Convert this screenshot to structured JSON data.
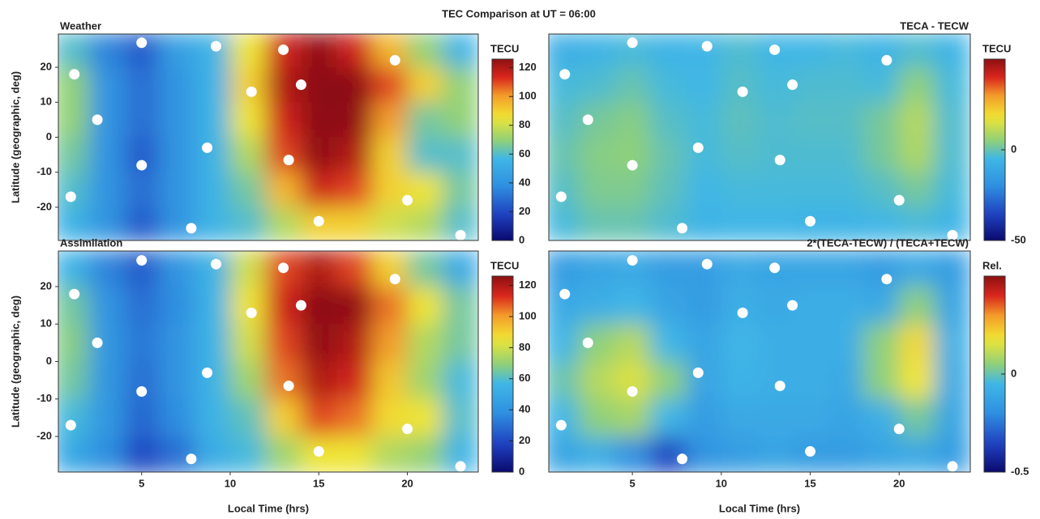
{
  "title": "TEC Comparison at UT = 06:00",
  "chart_data": [
    {
      "type": "heatmap",
      "title": "Weather",
      "colormap": "jet",
      "ylabel": "Latitude (geographic, deg)",
      "xlim": [
        0.3,
        24
      ],
      "ylim": [
        -29.5,
        29.5
      ],
      "yticks": [
        20,
        10,
        0,
        -10,
        -20
      ],
      "colorbar": {
        "label": "TECU",
        "lim": [
          0,
          126
        ],
        "ticks": [
          0,
          20,
          40,
          60,
          80,
          100,
          120
        ]
      },
      "grid_x": [
        1,
        3,
        5,
        7,
        9,
        11,
        13,
        15,
        17,
        19,
        21,
        23
      ],
      "grid_y": [
        25,
        15,
        5,
        -5,
        -15,
        -25
      ],
      "z": [
        [
          60,
          35,
          25,
          45,
          55,
          85,
          115,
          125,
          115,
          95,
          70,
          55
        ],
        [
          70,
          40,
          30,
          40,
          55,
          90,
          120,
          135,
          130,
          110,
          90,
          70
        ],
        [
          70,
          40,
          30,
          40,
          55,
          85,
          115,
          130,
          125,
          100,
          65,
          70
        ],
        [
          65,
          40,
          25,
          40,
          55,
          75,
          110,
          125,
          120,
          90,
          60,
          60
        ],
        [
          60,
          40,
          30,
          40,
          55,
          65,
          95,
          115,
          110,
          90,
          85,
          65
        ],
        [
          55,
          40,
          25,
          40,
          55,
          60,
          75,
          90,
          90,
          80,
          75,
          60
        ]
      ],
      "stations": {
        "x": [
          1.2,
          2.5,
          5,
          5,
          1,
          7.8,
          9.2,
          8.7,
          11.2,
          13,
          14,
          13.3,
          15,
          19.3,
          20,
          23
        ],
        "y": [
          18,
          5,
          27,
          -8,
          -17,
          -26,
          26,
          -3,
          13,
          25,
          15,
          -6.5,
          -24,
          22,
          -18,
          -28
        ]
      }
    },
    {
      "type": "heatmap",
      "title": "TECA - TECW",
      "colormap": "jet",
      "xlim": [
        0.3,
        24
      ],
      "ylim": [
        -29.5,
        29.5
      ],
      "colorbar": {
        "label": "TECU",
        "lim": [
          -50,
          50
        ],
        "ticks": [
          0,
          -50
        ]
      },
      "grid_x": [
        1,
        3,
        5,
        7,
        9,
        11,
        13,
        15,
        17,
        19,
        21,
        23
      ],
      "grid_y": [
        25,
        15,
        5,
        -5,
        -15,
        -25
      ],
      "z": [
        [
          -8,
          -6,
          -4,
          -6,
          -5,
          -3,
          -5,
          -5,
          -4,
          -6,
          -3,
          -6
        ],
        [
          -4,
          -3,
          0,
          -4,
          -5,
          -2,
          -4,
          -3,
          -3,
          -4,
          5,
          -4
        ],
        [
          -2,
          2,
          4,
          -2,
          -4,
          -1,
          -3,
          -2,
          -2,
          2,
          10,
          -3
        ],
        [
          0,
          4,
          5,
          0,
          -4,
          -2,
          -3,
          -3,
          -3,
          2,
          9,
          -3
        ],
        [
          -2,
          3,
          3,
          -1,
          -5,
          -4,
          -4,
          -4,
          -4,
          -2,
          2,
          -4
        ],
        [
          -4,
          0,
          0,
          -3,
          -6,
          -5,
          -5,
          -6,
          -6,
          -5,
          -4,
          -6
        ]
      ],
      "stations": {
        "x": [
          1.2,
          2.5,
          5,
          5,
          1,
          7.8,
          9.2,
          8.7,
          11.2,
          13,
          14,
          13.3,
          15,
          19.3,
          20,
          23
        ],
        "y": [
          18,
          5,
          27,
          -8,
          -17,
          -26,
          26,
          -3,
          13,
          25,
          15,
          -6.5,
          -24,
          22,
          -18,
          -28
        ]
      }
    },
    {
      "type": "heatmap",
      "title": "Assimilation",
      "colormap": "jet",
      "xlabel": "Local Time (hrs)",
      "ylabel": "Latitude (geographic, deg)",
      "xlim": [
        0.3,
        24
      ],
      "ylim": [
        -29.5,
        29.5
      ],
      "xticks": [
        5,
        10,
        15,
        20
      ],
      "yticks": [
        20,
        10,
        0,
        -10,
        -20
      ],
      "colorbar": {
        "label": "TECU",
        "lim": [
          0,
          126
        ],
        "ticks": [
          0,
          20,
          40,
          60,
          80,
          100,
          120
        ]
      },
      "grid_x": [
        1,
        3,
        5,
        7,
        9,
        11,
        13,
        15,
        17,
        19,
        21,
        23
      ],
      "grid_y": [
        25,
        15,
        5,
        -5,
        -15,
        -25
      ],
      "z": [
        [
          55,
          35,
          25,
          40,
          55,
          80,
          110,
          120,
          110,
          90,
          65,
          50
        ],
        [
          65,
          40,
          30,
          38,
          55,
          85,
          115,
          130,
          125,
          105,
          85,
          65
        ],
        [
          68,
          42,
          32,
          40,
          55,
          80,
          110,
          125,
          120,
          100,
          75,
          65
        ],
        [
          65,
          42,
          30,
          40,
          55,
          72,
          105,
          120,
          115,
          92,
          72,
          58
        ],
        [
          58,
          42,
          28,
          38,
          55,
          62,
          90,
          110,
          105,
          88,
          85,
          60
        ],
        [
          50,
          38,
          20,
          30,
          52,
          58,
          72,
          85,
          85,
          75,
          70,
          55
        ]
      ],
      "stations": {
        "x": [
          1.2,
          2.5,
          5,
          5,
          1,
          7.8,
          9.2,
          8.7,
          11.2,
          13,
          14,
          13.3,
          15,
          19.3,
          20,
          23
        ],
        "y": [
          18,
          5,
          27,
          -8,
          -17,
          -26,
          26,
          -3,
          13,
          25,
          15,
          -6.5,
          -24,
          22,
          -18,
          -28
        ]
      }
    },
    {
      "type": "heatmap",
      "title": "2*(TECA-TECW) / (TECA+TECW)",
      "colormap": "jet",
      "xlabel": "Local Time (hrs)",
      "xlim": [
        0.3,
        24
      ],
      "ylim": [
        -29.5,
        29.5
      ],
      "xticks": [
        5,
        10,
        15,
        20
      ],
      "colorbar": {
        "label": "Rel.",
        "lim": [
          -0.5,
          0.5
        ],
        "ticks": [
          0,
          -0.5
        ]
      },
      "grid_x": [
        1,
        3,
        5,
        7,
        9,
        11,
        13,
        15,
        17,
        19,
        21,
        23
      ],
      "grid_y": [
        25,
        15,
        5,
        -5,
        -15,
        -25
      ],
      "z": [
        [
          -0.15,
          -0.12,
          -0.1,
          -0.15,
          -0.15,
          -0.1,
          -0.12,
          -0.12,
          -0.12,
          -0.15,
          -0.1,
          -0.15
        ],
        [
          -0.1,
          -0.08,
          -0.05,
          -0.12,
          -0.15,
          -0.08,
          -0.1,
          -0.08,
          -0.08,
          -0.1,
          0.05,
          -0.12
        ],
        [
          -0.05,
          0.05,
          0.1,
          -0.05,
          -0.12,
          -0.05,
          -0.08,
          -0.08,
          -0.08,
          0.05,
          0.2,
          -0.08
        ],
        [
          0,
          0.1,
          0.15,
          0.05,
          -0.12,
          -0.06,
          -0.08,
          -0.08,
          -0.1,
          0.05,
          0.18,
          -0.1
        ],
        [
          -0.05,
          0.05,
          0.08,
          -0.05,
          -0.15,
          -0.1,
          -0.1,
          -0.1,
          -0.12,
          -0.08,
          0.02,
          -0.12
        ],
        [
          -0.12,
          -0.08,
          -0.2,
          -0.35,
          -0.18,
          -0.15,
          -0.12,
          -0.15,
          -0.15,
          -0.12,
          -0.1,
          -0.15
        ]
      ],
      "stations": {
        "x": [
          1.2,
          2.5,
          5,
          5,
          1,
          7.8,
          9.2,
          8.7,
          11.2,
          13,
          14,
          13.3,
          15,
          19.3,
          20,
          23
        ],
        "y": [
          18,
          5,
          27,
          -8,
          -17,
          -26,
          26,
          -3,
          13,
          25,
          15,
          -6.5,
          -24,
          22,
          -18,
          -28
        ]
      }
    }
  ]
}
